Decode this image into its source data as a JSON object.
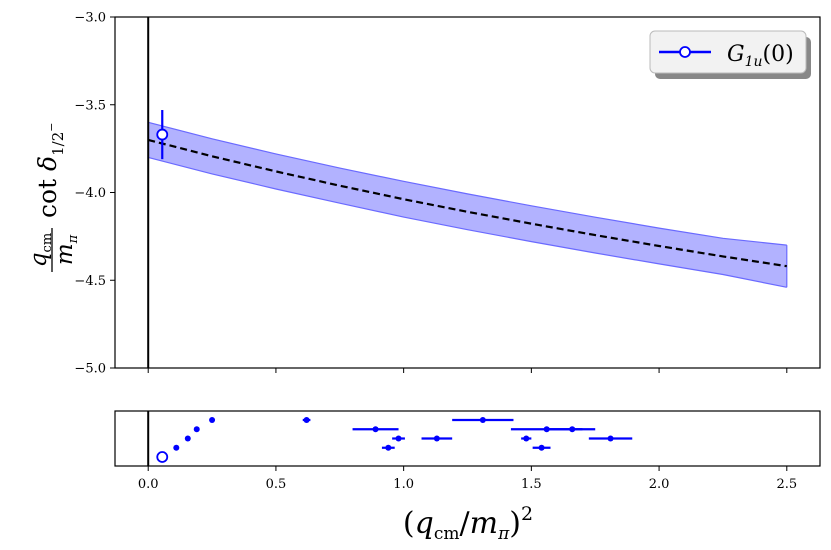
{
  "chart_data": [
    {
      "type": "line",
      "panel": "main",
      "ylabel": "q_cm/m_π cot δ_{1/2^-}",
      "ylim": [
        -5.0,
        -3.0
      ],
      "xlim": [
        -0.13,
        2.63
      ],
      "y_ticks": [
        -5.0,
        -4.5,
        -4.0,
        -3.5,
        -3.0
      ],
      "y_tick_labels": [
        "−5.0",
        "−4.5",
        "−4.0",
        "−3.5",
        "−3.0"
      ],
      "fit": {
        "name": "fit",
        "x": [
          0.0,
          0.25,
          0.5,
          0.75,
          1.0,
          1.25,
          1.5,
          1.75,
          2.0,
          2.25,
          2.5
        ],
        "center": [
          -3.7,
          -3.794,
          -3.88,
          -3.961,
          -4.038,
          -4.11,
          -4.178,
          -4.243,
          -4.305,
          -4.364,
          -4.42
        ],
        "upper": [
          -3.6,
          -3.694,
          -3.78,
          -3.861,
          -3.936,
          -4.008,
          -4.076,
          -4.141,
          -4.203,
          -4.261,
          -4.3
        ],
        "lower": [
          -3.8,
          -3.894,
          -3.98,
          -4.061,
          -4.14,
          -4.212,
          -4.28,
          -4.345,
          -4.407,
          -4.467,
          -4.54
        ],
        "line_color": "#000000",
        "band_color": "#0000ff"
      },
      "points": [
        {
          "series": "G_1u(0)",
          "x": 0.055,
          "y": -3.67,
          "yerr": 0.14
        }
      ],
      "legend": {
        "label": "G1u(0)",
        "sub": "1u",
        "base": "G",
        "arg": "(0)",
        "location": "top-right"
      },
      "vertical_line_x": 0.0
    },
    {
      "type": "scatter",
      "panel": "spectrum",
      "xlabel": "(q_cm/m_π)^2",
      "xlim": [
        -0.13,
        2.63
      ],
      "x_ticks": [
        0.0,
        0.5,
        1.0,
        1.5,
        2.0,
        2.5
      ],
      "x_tick_labels": [
        "0.0",
        "0.5",
        "1.0",
        "1.5",
        "2.0",
        "2.5"
      ],
      "levels": [
        0,
        1,
        2,
        3,
        4
      ],
      "points": [
        {
          "x": 0.055,
          "level": 0,
          "xerr": 0.0,
          "open": true
        },
        {
          "x": 0.11,
          "level": 1,
          "xerr": 0.0
        },
        {
          "x": 0.155,
          "level": 2,
          "xerr": 0.0
        },
        {
          "x": 0.19,
          "level": 3,
          "xerr": 0.0
        },
        {
          "x": 0.25,
          "level": 4,
          "xerr": 0.0
        },
        {
          "x": 0.62,
          "level": 4,
          "xerr": 0.015
        },
        {
          "x": 0.89,
          "level": 3,
          "xerr": 0.09
        },
        {
          "x": 0.94,
          "level": 1,
          "xerr": 0.025
        },
        {
          "x": 0.98,
          "level": 2,
          "xerr": 0.025
        },
        {
          "x": 1.13,
          "level": 2,
          "xerr": 0.06
        },
        {
          "x": 1.31,
          "level": 4,
          "xerr": 0.12
        },
        {
          "x": 1.48,
          "level": 2,
          "xerr": 0.02
        },
        {
          "x": 1.56,
          "level": 3,
          "xerr": 0.14
        },
        {
          "x": 1.54,
          "level": 1,
          "xerr": 0.035
        },
        {
          "x": 1.66,
          "level": 3,
          "xerr": 0.09
        },
        {
          "x": 1.81,
          "level": 2,
          "xerr": 0.085
        }
      ],
      "color": "#0000ff"
    }
  ]
}
